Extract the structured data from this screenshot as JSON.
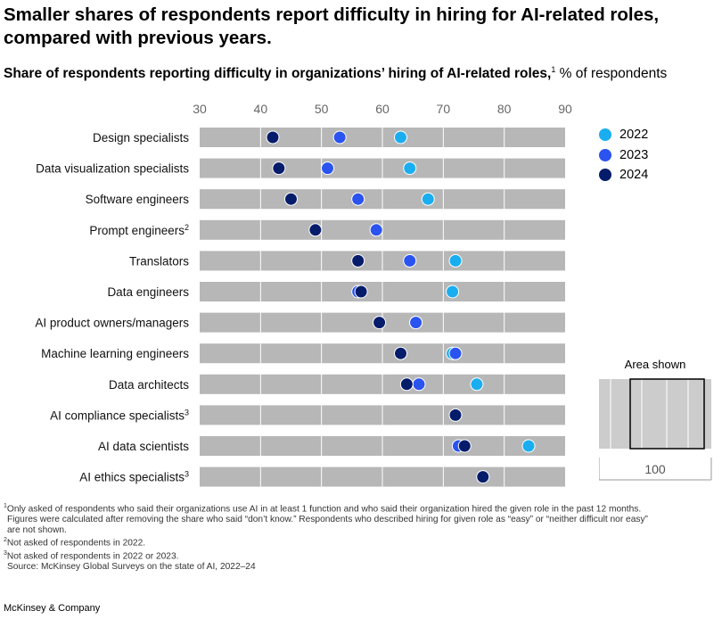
{
  "title": "Smaller shares of respondents report difficulty in hiring for AI-related roles, compared with previous years.",
  "subtitle": {
    "bold": "Share of respondents reporting difficulty in organizations’ hiring of AI-related roles,",
    "sup": "1",
    "normal": " % of respondents"
  },
  "colors": {
    "2022": "#1aaef0",
    "2023": "#2a53f0",
    "2024": "#051c6b",
    "bar": "#b7b7b7",
    "inset_bg": "#cccccc"
  },
  "chart_data": {
    "type": "scatter",
    "xlim": [
      30,
      90
    ],
    "x_ticks": [
      "30",
      "40",
      "50",
      "60",
      "70",
      "80",
      "90"
    ],
    "categories": [
      {
        "label": "Design specialists",
        "sup": ""
      },
      {
        "label": "Data visualization specialists",
        "sup": ""
      },
      {
        "label": "Software engineers",
        "sup": ""
      },
      {
        "label": "Prompt engineers",
        "sup": "2"
      },
      {
        "label": "Translators",
        "sup": ""
      },
      {
        "label": "Data engineers",
        "sup": ""
      },
      {
        "label": "AI product owners/managers",
        "sup": ""
      },
      {
        "label": "Machine learning engineers",
        "sup": ""
      },
      {
        "label": "Data architects",
        "sup": ""
      },
      {
        "label": "AI compliance specialists",
        "sup": "3"
      },
      {
        "label": "AI data scientists",
        "sup": ""
      },
      {
        "label": "AI ethics specialists",
        "sup": "3"
      }
    ],
    "series": [
      {
        "name": "2022",
        "values": [
          63,
          64.5,
          67.5,
          null,
          72,
          71.5,
          65.5,
          71.5,
          75.5,
          null,
          84,
          null
        ]
      },
      {
        "name": "2023",
        "values": [
          53,
          51,
          56,
          59,
          64.5,
          56,
          65.5,
          72,
          66,
          null,
          72.5,
          null
        ]
      },
      {
        "name": "2024",
        "values": [
          42,
          43,
          45,
          49,
          56,
          56.5,
          59.5,
          63,
          64,
          72,
          73.5,
          76.5
        ]
      }
    ]
  },
  "legend": [
    {
      "label": "2022"
    },
    {
      "label": "2023"
    },
    {
      "label": "2024"
    }
  ],
  "inset": {
    "title": "Area shown",
    "value": "100"
  },
  "footnotes": {
    "f1_sup": "1",
    "f1_line1": "Only asked of respondents who said their organizations use AI in at least 1 function and who said their organization hired the given role in the past 12 months.",
    "f1_line2": "Figures were calculated after removing the share who said “don’t know.” Respondents who described hiring for given role as “easy” or “neither difficult nor easy”",
    "f1_line3": "are not shown.",
    "f2_sup": "2",
    "f2": "Not asked of respondents in 2022.",
    "f3_sup": "3",
    "f3": "Not asked of respondents in 2022 or 2023.",
    "source": "Source: McKinsey Global Surveys on the state of AI, 2022–24"
  },
  "brand": "McKinsey & Company"
}
